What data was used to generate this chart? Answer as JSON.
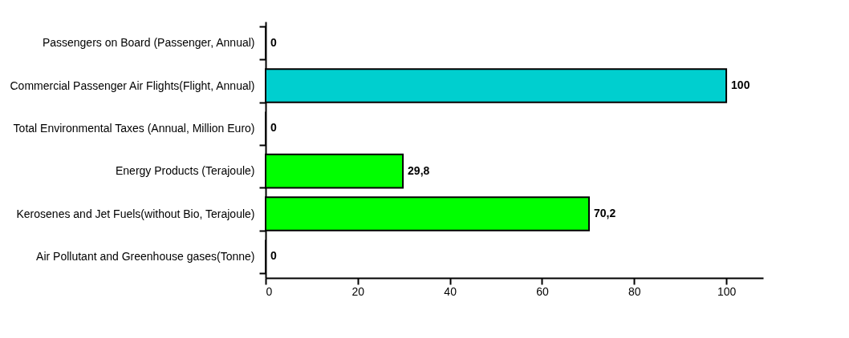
{
  "chart_data": {
    "type": "bar",
    "orientation": "horizontal",
    "categories": [
      "Passengers on Board (Passenger, Annual)",
      "Commercial Passenger Air Flights(Flight, Annual)",
      "Total Environmental Taxes (Annual, Million Euro)",
      "Energy Products (Terajoule)",
      "Kerosenes and Jet Fuels(without Bio, Terajoule)",
      "Air Pollutant and Greenhouse gases(Tonne)"
    ],
    "values": [
      0,
      100,
      0,
      29.8,
      70.2,
      0
    ],
    "colors": [
      "#00ff00",
      "#00cfcf",
      "#00ff00",
      "#00ff00",
      "#00ff00",
      "#00ff00"
    ],
    "value_labels": [
      "0",
      "100",
      "0",
      "29,8",
      "70,2",
      "0"
    ],
    "xlim": [
      0,
      108
    ],
    "xticks": [
      0,
      20,
      40,
      60,
      80,
      100
    ],
    "grid": false
  }
}
